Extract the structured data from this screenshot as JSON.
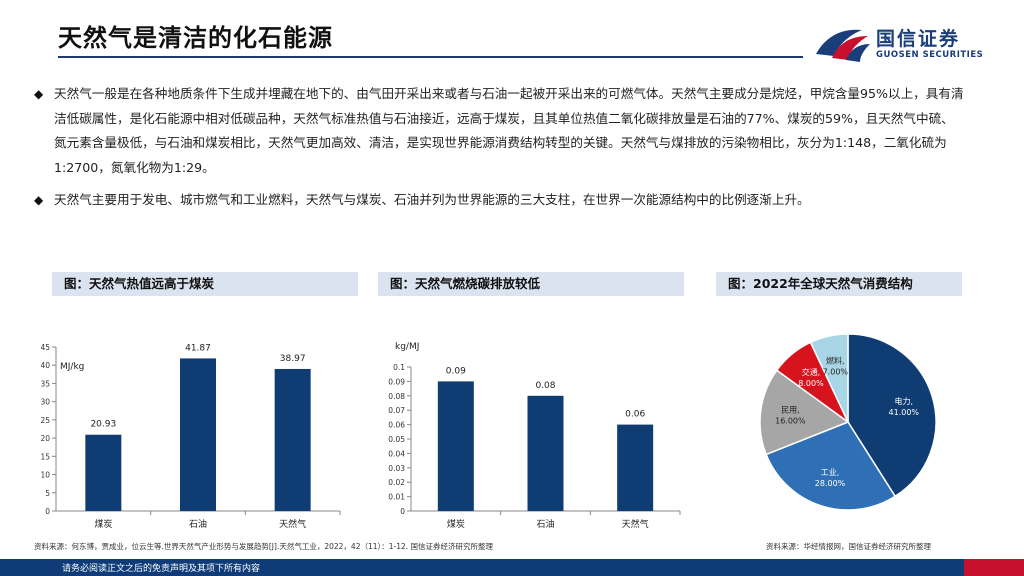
{
  "header": {
    "title": "天然气是清洁的化石能源",
    "brand_cn": "国信证券",
    "brand_en": "GUOSEN SECURITIES"
  },
  "bullets": [
    "天然气一般是在各种地质条件下生成并埋藏在地下的、由气田开采出来或者与石油一起被开采出来的可燃气体。天然气主要成分是烷烃，甲烷含量95%以上，具有清洁低碳属性，是化石能源中相对低碳品种，天然气标准热值与石油接近，远高于煤炭，且其单位热值二氧化碳排放量是石油的77%、煤炭的59%，且天然气中硫、氮元素含量极低，与石油和煤炭相比，天然气更加高效、清洁，是实现世界能源消费结构转型的关键。天然气与煤排放的污染物相比，灰分为1:148，二氧化硫为1:2700，氮氧化物为1:29。",
    "天然气主要用于发电、城市燃气和工业燃料，天然气与煤炭、石油并列为世界能源的三大支柱，在世界一次能源结构中的比例逐渐上升。"
  ],
  "chart_headers": [
    "图：天然气热值远高于煤炭",
    "图：天然气燃烧碳排放较低",
    "图：2022年全球天然气消费结构"
  ],
  "chart_data": [
    {
      "type": "bar",
      "categories": [
        "煤炭",
        "石油",
        "天然气"
      ],
      "values": [
        20.93,
        41.87,
        38.97
      ],
      "value_labels": [
        "20.93",
        "41.87",
        "38.97"
      ],
      "ylabel": "MJ/kg",
      "ylim": [
        0,
        45
      ],
      "yticks": [
        0,
        5,
        10,
        15,
        20,
        25,
        30,
        35,
        40,
        45
      ],
      "ytick_labels": [
        "0",
        "5",
        "10",
        "15",
        "20",
        "25",
        "30",
        "35",
        "40",
        "45"
      ],
      "color": "#0f3d73"
    },
    {
      "type": "bar",
      "categories": [
        "煤炭",
        "石油",
        "天然气"
      ],
      "values": [
        0.09,
        0.08,
        0.06
      ],
      "value_labels": [
        "0.09",
        "0.08",
        "0.06"
      ],
      "ylabel": "kg/MJ",
      "ylim": [
        0,
        0.1
      ],
      "yticks": [
        0,
        0.01,
        0.02,
        0.03,
        0.04,
        0.05,
        0.06,
        0.07,
        0.08,
        0.09,
        0.1
      ],
      "ytick_labels": [
        "0",
        "0.01",
        "0.02",
        "0.03",
        "0.04",
        "0.05",
        "0.06",
        "0.07",
        "0.08",
        "0.09",
        "0.1"
      ],
      "color": "#0f3d73"
    },
    {
      "type": "pie",
      "slices": [
        {
          "name": "电力",
          "value": 41.0,
          "label": "41.00%",
          "color": "#0f3d73",
          "text_color": "#ffffff"
        },
        {
          "name": "工业",
          "value": 28.0,
          "label": "28.00%",
          "color": "#2e6fb5",
          "text_color": "#ffffff"
        },
        {
          "name": "民用",
          "value": 16.0,
          "label": "16.00%",
          "color": "#a6a6a6",
          "text_color": "#222222"
        },
        {
          "name": "交通",
          "value": 8.0,
          "label": "8.00%",
          "color": "#d7141e",
          "text_color": "#ffffff"
        },
        {
          "name": "燃料",
          "value": 7.0,
          "label": "7.00%",
          "color": "#a9d6e6",
          "text_color": "#222222"
        }
      ]
    }
  ],
  "sources": {
    "left": "资料来源：何东博，贾成业，位云生等.世界天然气产业形势与发展趋势[J].天然气工业，2022，42（11）：1-12. 国信证券经济研究所整理",
    "right": "资料来源：华经情报网，国信证券经济研究所整理"
  },
  "footer": {
    "disclaimer": "请务必阅读正文之后的免责声明及其项下所有内容"
  }
}
